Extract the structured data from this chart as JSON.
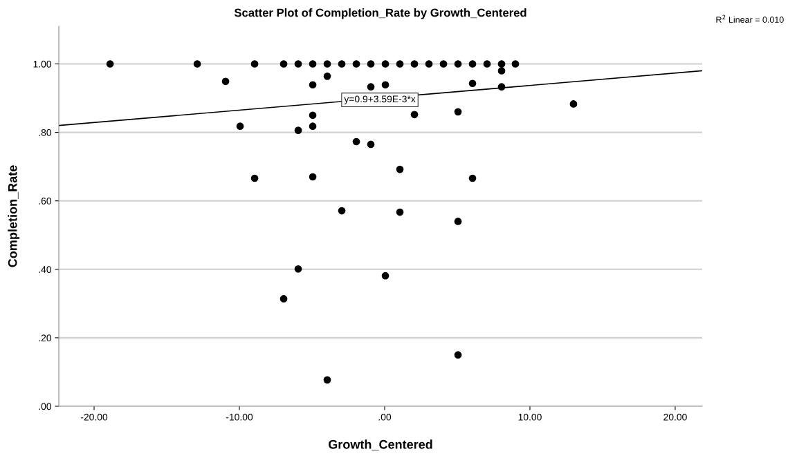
{
  "chart_data": {
    "type": "scatter",
    "title": "Scatter Plot of Completion_Rate by Growth_Centered",
    "xlabel": "Growth_Centered",
    "ylabel": "Completion_Rate",
    "xlim": [
      -22.43,
      21.86
    ],
    "ylim": [
      0,
      1.11
    ],
    "xticks": [
      {
        "value": -20,
        "label": "-20.00"
      },
      {
        "value": -10,
        "label": "-10.00"
      },
      {
        "value": 0,
        "label": ".00"
      },
      {
        "value": 10,
        "label": "10.00"
      },
      {
        "value": 20,
        "label": "20.00"
      }
    ],
    "yticks": [
      {
        "value": 0,
        "label": ".00"
      },
      {
        "value": 0.2,
        "label": ".20"
      },
      {
        "value": 0.4,
        "label": ".40"
      },
      {
        "value": 0.6,
        "label": ".60"
      },
      {
        "value": 0.8,
        "label": ".80"
      },
      {
        "value": 1.0,
        "label": "1.00"
      }
    ],
    "grid": "y",
    "marker": "circle",
    "series": [
      {
        "color": "#000000",
        "x": [
          -18.9,
          -12.9,
          -8.95,
          -6.95,
          -5.95,
          -4.95,
          -3.95,
          -2.95,
          -1.95,
          -0.95,
          0.05,
          1.05,
          2.05,
          3.05,
          4.05,
          5.05,
          6.05,
          7.05,
          8.05,
          9.0,
          8.05,
          -10.95,
          -3.95,
          -4.95,
          -0.95,
          0.05,
          6.05,
          8.05,
          13.0,
          -4.95,
          2.05,
          5.05,
          -9.95,
          -4.95,
          -5.95,
          -1.95,
          -0.95,
          1.05,
          -8.95,
          -4.95,
          6.05,
          -2.95,
          1.05,
          5.05,
          -5.95,
          0.05,
          -6.95,
          5.05,
          -3.95
        ],
        "values": [
          1,
          1,
          1,
          1,
          1,
          1,
          1,
          1,
          1,
          1,
          1,
          1,
          1,
          1,
          1,
          1,
          1,
          1,
          1,
          1,
          0.98,
          0.949,
          0.964,
          0.939,
          0.933,
          0.939,
          0.943,
          0.933,
          0.883,
          0.85,
          0.852,
          0.86,
          0.818,
          0.818,
          0.806,
          0.773,
          0.765,
          0.692,
          0.666,
          0.67,
          0.666,
          0.571,
          0.567,
          0.54,
          0.401,
          0.381,
          0.314,
          0.15,
          0.077
        ]
      },
      {
        "type": "line",
        "marker": "none",
        "color": "#000000",
        "x": [
          -22.43,
          21.86
        ],
        "values": [
          0.82,
          0.98
        ]
      }
    ],
    "annotations": [
      {
        "text": "y=0.9+3.59E-3*x",
        "x": -0.33,
        "y": 0.895
      },
      "R$^{2}$ Linear = 0.010"
    ]
  }
}
